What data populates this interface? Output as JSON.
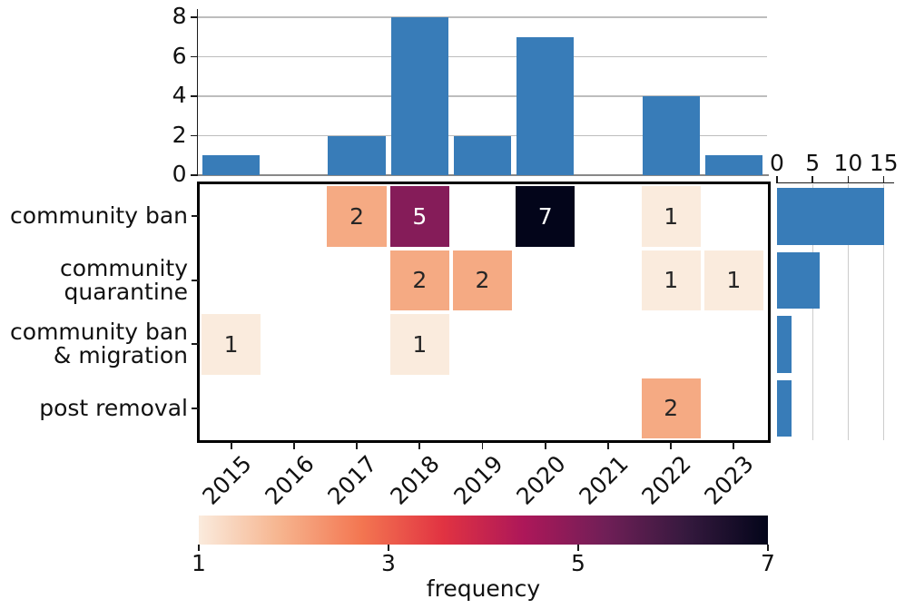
{
  "figure": {
    "colors": {
      "bar_blue": "#387cb8",
      "grid_top": "#bdbdbd",
      "grid_right": "#cccccc",
      "axis_dark": "#1a1a1a",
      "axis_gray": "#888888",
      "heatmap_border": "#000000",
      "annot_dark": "#262626",
      "annot_light": "#ffffff"
    }
  },
  "chart_data": [
    {
      "id": "top_histogram",
      "type": "bar",
      "orientation": "vertical",
      "title": "",
      "categories": [
        "2015",
        "2016",
        "2017",
        "2018",
        "2019",
        "2020",
        "2021",
        "2022",
        "2023"
      ],
      "values": [
        1,
        0,
        2,
        8,
        2,
        7,
        0,
        4,
        1
      ],
      "ytick_labels": [
        "0",
        "2",
        "4",
        "6",
        "8"
      ],
      "yticks": [
        0,
        2,
        4,
        6,
        8
      ],
      "ylim": [
        0,
        8.4
      ],
      "grid": true,
      "legend": "none",
      "bar_color": "#387cb8"
    },
    {
      "id": "heatmap",
      "type": "heatmap",
      "x_categories": [
        "2015",
        "2016",
        "2017",
        "2018",
        "2019",
        "2020",
        "2021",
        "2022",
        "2023"
      ],
      "y_categories": [
        "community ban",
        "community quarantine",
        "community ban & migration",
        "post removal"
      ],
      "y_category_lines": [
        [
          "community ban"
        ],
        [
          "community",
          "quarantine"
        ],
        [
          "community ban",
          "& migration"
        ],
        [
          "post removal"
        ]
      ],
      "matrix": [
        [
          null,
          null,
          2,
          5,
          null,
          7,
          null,
          1,
          null
        ],
        [
          null,
          null,
          null,
          2,
          2,
          null,
          null,
          1,
          1
        ],
        [
          1,
          null,
          null,
          1,
          null,
          null,
          null,
          null,
          null
        ],
        [
          null,
          null,
          null,
          null,
          null,
          null,
          null,
          2,
          null
        ]
      ],
      "annotated": true,
      "vmin": 1,
      "vmax": 7,
      "colormap": "rocket_r",
      "value_colors": {
        "1": "#FAEBDD",
        "2": "#F5AA83",
        "5": "#851C59",
        "7": "#03051A"
      },
      "value_text_colors": {
        "1": "#262626",
        "2": "#262626",
        "5": "#ffffff",
        "7": "#ffffff"
      }
    },
    {
      "id": "right_histogram",
      "type": "bar",
      "orientation": "horizontal",
      "categories": [
        "community ban",
        "community quarantine",
        "community ban & migration",
        "post removal"
      ],
      "values": [
        15,
        6,
        2,
        2
      ],
      "xtick_labels": [
        "0",
        "5",
        "10",
        "15"
      ],
      "xticks": [
        0,
        5,
        10,
        15
      ],
      "xlim": [
        0,
        16.4
      ],
      "grid": true,
      "legend": "none",
      "bar_color": "#387cb8"
    },
    {
      "id": "colorbar",
      "type": "colorbar",
      "label": "frequency",
      "tick_labels": [
        "1",
        "3",
        "5",
        "7"
      ],
      "ticks": [
        1,
        3,
        5,
        7
      ],
      "range": [
        1,
        7
      ],
      "colormap": "rocket_r",
      "gradient_stops": [
        {
          "pos": 0,
          "color": "#FAEBDD"
        },
        {
          "pos": 0.143,
          "color": "#F6B48E"
        },
        {
          "pos": 0.286,
          "color": "#F37651"
        },
        {
          "pos": 0.429,
          "color": "#E13342"
        },
        {
          "pos": 0.571,
          "color": "#AD1759"
        },
        {
          "pos": 0.714,
          "color": "#701F57"
        },
        {
          "pos": 0.857,
          "color": "#35193E"
        },
        {
          "pos": 1,
          "color": "#03051A"
        }
      ]
    }
  ]
}
